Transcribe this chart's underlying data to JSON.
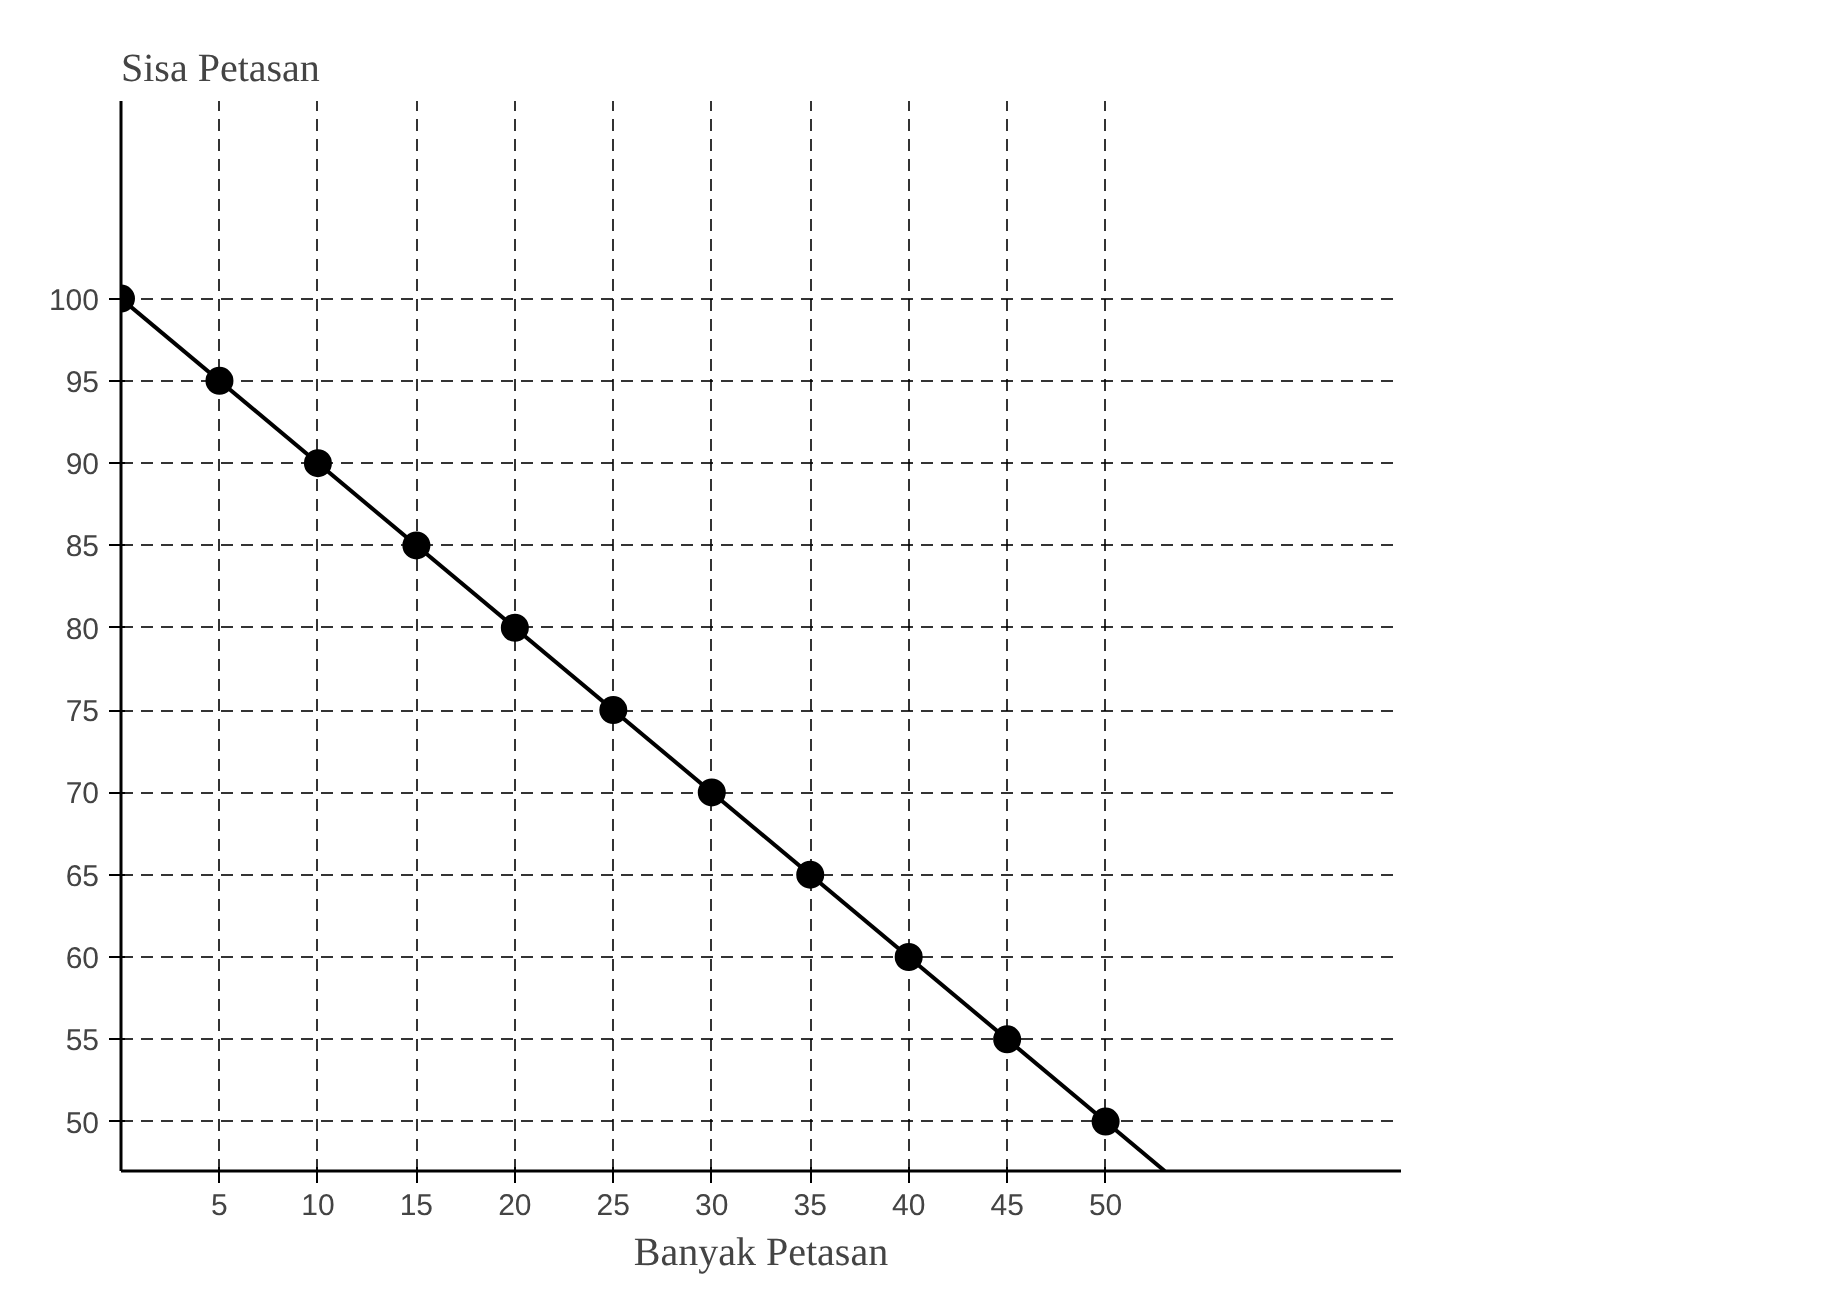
{
  "chart_data": {
    "type": "scatter",
    "xlabel": "Banyak Petasan",
    "ylabel": "Sisa Petasan",
    "xlim": [
      0,
      65
    ],
    "ylim": [
      47,
      112
    ],
    "xticks": [
      5,
      10,
      15,
      20,
      25,
      30,
      35,
      40,
      45,
      50
    ],
    "yticks": [
      50,
      55,
      60,
      65,
      70,
      75,
      80,
      85,
      90,
      95,
      100
    ],
    "grid": true,
    "marker": "circle",
    "series": [
      {
        "color": "#000000",
        "x": [
          0,
          5,
          10,
          15,
          20,
          25,
          30,
          35,
          40,
          45,
          50
        ],
        "values": [
          100,
          95,
          90,
          85,
          80,
          75,
          70,
          65,
          60,
          55,
          50
        ]
      },
      {
        "type": "line",
        "marker": "none",
        "color": "#000000",
        "x": [
          0,
          53
        ],
        "values": [
          100,
          47
        ]
      }
    ]
  }
}
